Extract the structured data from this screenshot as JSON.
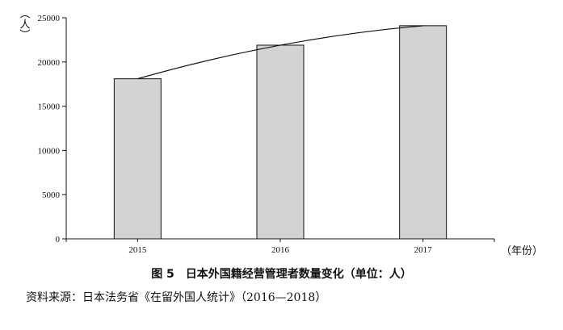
{
  "chart_data": {
    "type": "bar",
    "categories": [
      "2015",
      "2016",
      "2017"
    ],
    "values": [
      18100,
      21900,
      24100
    ],
    "trendline": true,
    "ylim": [
      0,
      25000
    ],
    "yticks": [
      "0",
      "5000",
      "10000",
      "15000",
      "20000",
      "25000"
    ],
    "ylabel": "（人）",
    "xlabel": "（年份）",
    "title": "图 5　日本外国籍经营管理者数量变化（单位：人）",
    "grid": false,
    "bar_color": "#d3d3d3"
  },
  "caption": "图 5　日本外国籍经营管理者数量变化（单位：人）",
  "source": "资料来源：日本法务省《在留外国人统计》（2016—2018）",
  "y_unit_label": "（人）",
  "x_unit_label": "（年份）"
}
